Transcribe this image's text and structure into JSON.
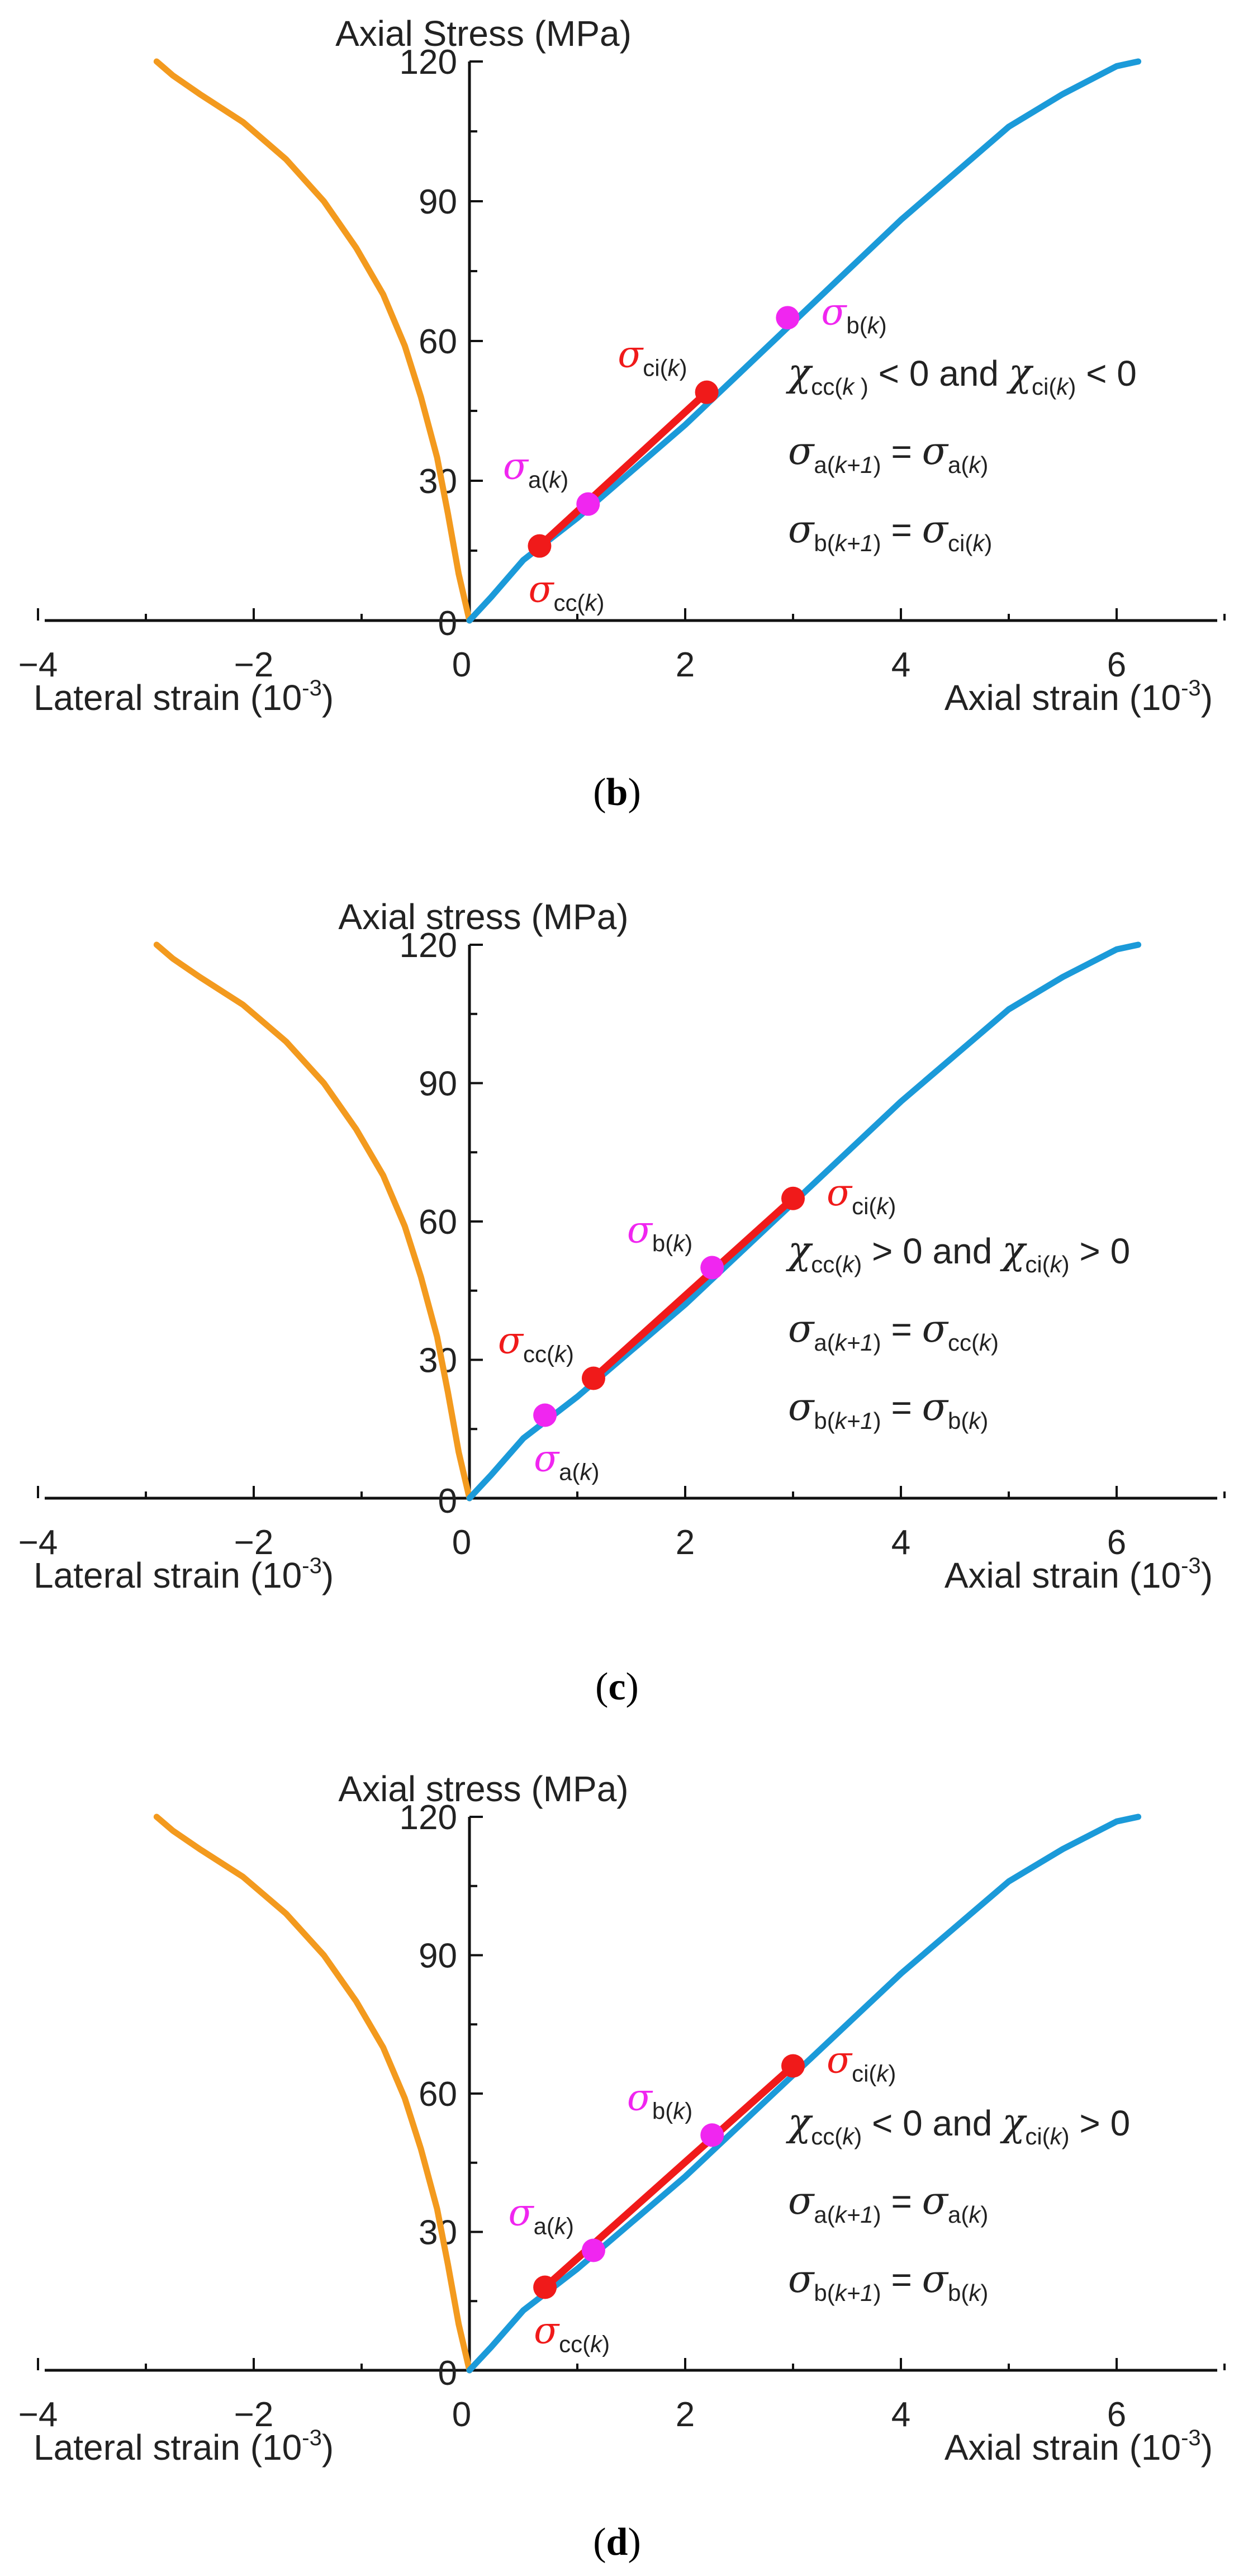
{
  "colors": {
    "lateral": "#F39A1E",
    "axial": "#1B9AD9",
    "red": "#F01A1A",
    "magenta": "#F026F0",
    "axis": "#111111"
  },
  "chart_data": [
    {
      "type": "line",
      "panel": "b",
      "caption_label": "b",
      "title": "Axial Stress (MPa)",
      "xlabel_left": "Lateral strain (10",
      "xlabel_right": "Axial strain (10",
      "xlabel_exp": "-3",
      "xlim": [
        -4,
        7
      ],
      "ylim": [
        0,
        120
      ],
      "x_ticks": [
        -4,
        -2,
        0,
        2,
        4,
        6
      ],
      "y_ticks": [
        0,
        30,
        60,
        90,
        120
      ],
      "x_tick_labels": [
        "−4",
        "−2",
        "0",
        "2",
        "4",
        "6"
      ],
      "y_tick_labels": [
        "0",
        "30",
        "60",
        "90",
        "120"
      ],
      "series": [
        {
          "name": "Lateral strain",
          "color": "lateral",
          "x": [
            0.0,
            -0.1,
            -0.2,
            -0.3,
            -0.45,
            -0.6,
            -0.8,
            -1.05,
            -1.35,
            -1.7,
            -2.1,
            -2.5,
            -2.75,
            -2.85,
            -2.9
          ],
          "y": [
            0,
            10,
            23,
            35,
            48,
            59,
            70,
            80,
            90,
            99,
            107,
            113,
            117,
            119,
            120
          ]
        },
        {
          "name": "Axial strain",
          "color": "axial",
          "x": [
            0.0,
            0.2,
            0.5,
            1.0,
            1.5,
            2.0,
            2.5,
            3.0,
            3.5,
            4.0,
            4.5,
            5.0,
            5.5,
            6.0,
            6.2
          ],
          "y": [
            0,
            5,
            13,
            22,
            32,
            42,
            53,
            64,
            75,
            86,
            96,
            106,
            113,
            119,
            120
          ]
        }
      ],
      "segment": {
        "from": "cc",
        "to": "ci"
      },
      "points": [
        {
          "id": "cc",
          "x": 0.65,
          "y": 16,
          "color": "red",
          "base": "σ",
          "sub": "cc(",
          "k": "k",
          "close": ")",
          "label_pos": "below"
        },
        {
          "id": "a",
          "x": 1.1,
          "y": 25,
          "color": "magenta",
          "base": "σ",
          "sub": "a(",
          "k": "k",
          "close": ")",
          "label_pos": "upper-left"
        },
        {
          "id": "ci",
          "x": 2.2,
          "y": 49,
          "color": "red",
          "base": "σ",
          "sub": "ci(",
          "k": "k",
          "close": ")",
          "label_pos": "upper-left"
        },
        {
          "id": "b",
          "x": 2.95,
          "y": 65,
          "color": "magenta",
          "base": "σ",
          "sub": "b(",
          "k": "k",
          "close": ")",
          "label_pos": "right"
        }
      ],
      "annotations": [
        {
          "chi1": "χ",
          "sub1": "cc(",
          "k1": "k ",
          "close1": ")",
          "rel1": " < 0 and ",
          "chi2": "χ",
          "sub2": "ci(",
          "k2": "k",
          "close2": ")",
          "rel2": " < 0"
        },
        {
          "lhs": "σ",
          "lsub": "a(",
          "lk": "k+1",
          "lclose": ")",
          "eq": " = ",
          "rhs": "σ",
          "rsub": "a(",
          "rk": "k",
          "rclose": ")"
        },
        {
          "lhs": "σ",
          "lsub": "b(",
          "lk": "k+1",
          "lclose": ")",
          "eq": " = ",
          "rhs": "σ",
          "rsub": "ci(",
          "rk": "k",
          "rclose": ")"
        }
      ]
    },
    {
      "type": "line",
      "panel": "c",
      "caption_label": "c",
      "title": "Axial stress (MPa)",
      "xlabel_left": "Lateral strain (10",
      "xlabel_right": "Axial strain (10",
      "xlabel_exp": "-3",
      "xlim": [
        -4,
        7
      ],
      "ylim": [
        0,
        120
      ],
      "x_ticks": [
        -4,
        -2,
        0,
        2,
        4,
        6
      ],
      "y_ticks": [
        0,
        30,
        60,
        90,
        120
      ],
      "x_tick_labels": [
        "−4",
        "−2",
        "0",
        "2",
        "4",
        "6"
      ],
      "y_tick_labels": [
        "0",
        "30",
        "60",
        "90",
        "120"
      ],
      "series": [
        {
          "name": "Lateral strain",
          "color": "lateral",
          "x": [
            0.0,
            -0.1,
            -0.2,
            -0.3,
            -0.45,
            -0.6,
            -0.8,
            -1.05,
            -1.35,
            -1.7,
            -2.1,
            -2.5,
            -2.75,
            -2.85,
            -2.9
          ],
          "y": [
            0,
            10,
            23,
            35,
            48,
            59,
            70,
            80,
            90,
            99,
            107,
            113,
            117,
            119,
            120
          ]
        },
        {
          "name": "Axial strain",
          "color": "axial",
          "x": [
            0.0,
            0.2,
            0.5,
            1.0,
            1.5,
            2.0,
            2.5,
            3.0,
            3.5,
            4.0,
            4.5,
            5.0,
            5.5,
            6.0,
            6.2
          ],
          "y": [
            0,
            5,
            13,
            22,
            32,
            42,
            53,
            64,
            75,
            86,
            96,
            106,
            113,
            119,
            120
          ]
        }
      ],
      "segment": {
        "from": "cc",
        "to": "ci"
      },
      "points": [
        {
          "id": "a",
          "x": 0.7,
          "y": 18,
          "color": "magenta",
          "base": "σ",
          "sub": "a(",
          "k": "k",
          "close": ")",
          "label_pos": "below"
        },
        {
          "id": "cc",
          "x": 1.15,
          "y": 26,
          "color": "red",
          "base": "σ",
          "sub": "cc(",
          "k": "k",
          "close": ")",
          "label_pos": "upper-left"
        },
        {
          "id": "b",
          "x": 2.25,
          "y": 50,
          "color": "magenta",
          "base": "σ",
          "sub": "b(",
          "k": "k",
          "close": ")",
          "label_pos": "upper-left"
        },
        {
          "id": "ci",
          "x": 3.0,
          "y": 65,
          "color": "red",
          "base": "σ",
          "sub": "ci(",
          "k": "k",
          "close": ")",
          "label_pos": "right"
        }
      ],
      "annotations": [
        {
          "chi1": "χ",
          "sub1": "cc(",
          "k1": "k",
          "close1": ")",
          "rel1": " > 0 and ",
          "chi2": "χ",
          "sub2": "ci(",
          "k2": "k",
          "close2": ")",
          "rel2": " > 0"
        },
        {
          "lhs": "σ",
          "lsub": "a(",
          "lk": "k+1",
          "lclose": ")",
          "eq": " = ",
          "rhs": "σ",
          "rsub": "cc(",
          "rk": "k",
          "rclose": ")"
        },
        {
          "lhs": "σ",
          "lsub": "b(",
          "lk": "k+1",
          "lclose": ")",
          "eq": " = ",
          "rhs": "σ",
          "rsub": "b(",
          "rk": "k",
          "rclose": ")"
        }
      ]
    },
    {
      "type": "line",
      "panel": "d",
      "caption_label": "d",
      "title": "Axial stress (MPa)",
      "xlabel_left": "Lateral strain (10",
      "xlabel_right": "Axial strain (10",
      "xlabel_exp": "-3",
      "xlim": [
        -4,
        7
      ],
      "ylim": [
        0,
        120
      ],
      "x_ticks": [
        -4,
        -2,
        0,
        2,
        4,
        6
      ],
      "y_ticks": [
        0,
        30,
        60,
        90,
        120
      ],
      "x_tick_labels": [
        "−4",
        "−2",
        "0",
        "2",
        "4",
        "6"
      ],
      "y_tick_labels": [
        "0",
        "30",
        "60",
        "90",
        "120"
      ],
      "series": [
        {
          "name": "Lateral strain",
          "color": "lateral",
          "x": [
            0.0,
            -0.1,
            -0.2,
            -0.3,
            -0.45,
            -0.6,
            -0.8,
            -1.05,
            -1.35,
            -1.7,
            -2.1,
            -2.5,
            -2.75,
            -2.85,
            -2.9
          ],
          "y": [
            0,
            10,
            23,
            35,
            48,
            59,
            70,
            80,
            90,
            99,
            107,
            113,
            117,
            119,
            120
          ]
        },
        {
          "name": "Axial strain",
          "color": "axial",
          "x": [
            0.0,
            0.2,
            0.5,
            1.0,
            1.5,
            2.0,
            2.5,
            3.0,
            3.5,
            4.0,
            4.5,
            5.0,
            5.5,
            6.0,
            6.2
          ],
          "y": [
            0,
            5,
            13,
            22,
            32,
            42,
            53,
            64,
            75,
            86,
            96,
            106,
            113,
            119,
            120
          ]
        }
      ],
      "segment": {
        "from": "cc",
        "to": "ci"
      },
      "points": [
        {
          "id": "cc",
          "x": 0.7,
          "y": 18,
          "color": "red",
          "base": "σ",
          "sub": "cc(",
          "k": "k",
          "close": ")",
          "label_pos": "below"
        },
        {
          "id": "a",
          "x": 1.15,
          "y": 26,
          "color": "magenta",
          "base": "σ",
          "sub": "a(",
          "k": "k",
          "close": ")",
          "label_pos": "upper-left"
        },
        {
          "id": "b",
          "x": 2.25,
          "y": 51,
          "color": "magenta",
          "base": "σ",
          "sub": "b(",
          "k": "k",
          "close": ")",
          "label_pos": "upper-left"
        },
        {
          "id": "ci",
          "x": 3.0,
          "y": 66,
          "color": "red",
          "base": "σ",
          "sub": "ci(",
          "k": "k",
          "close": ")",
          "label_pos": "right"
        }
      ],
      "annotations": [
        {
          "chi1": "χ",
          "sub1": "cc(",
          "k1": "k",
          "close1": ")",
          "rel1": " < 0 and ",
          "chi2": "χ",
          "sub2": "ci(",
          "k2": "k",
          "close2": ")",
          "rel2": " > 0"
        },
        {
          "lhs": "σ",
          "lsub": "a(",
          "lk": "k+1",
          "lclose": ")",
          "eq": " = ",
          "rhs": "σ",
          "rsub": "a(",
          "rk": "k",
          "rclose": ")"
        },
        {
          "lhs": "σ",
          "lsub": "b(",
          "lk": "k+1",
          "lclose": ")",
          "eq": " = ",
          "rhs": "σ",
          "rsub": "b(",
          "rk": "k",
          "rclose": ")"
        }
      ]
    }
  ]
}
